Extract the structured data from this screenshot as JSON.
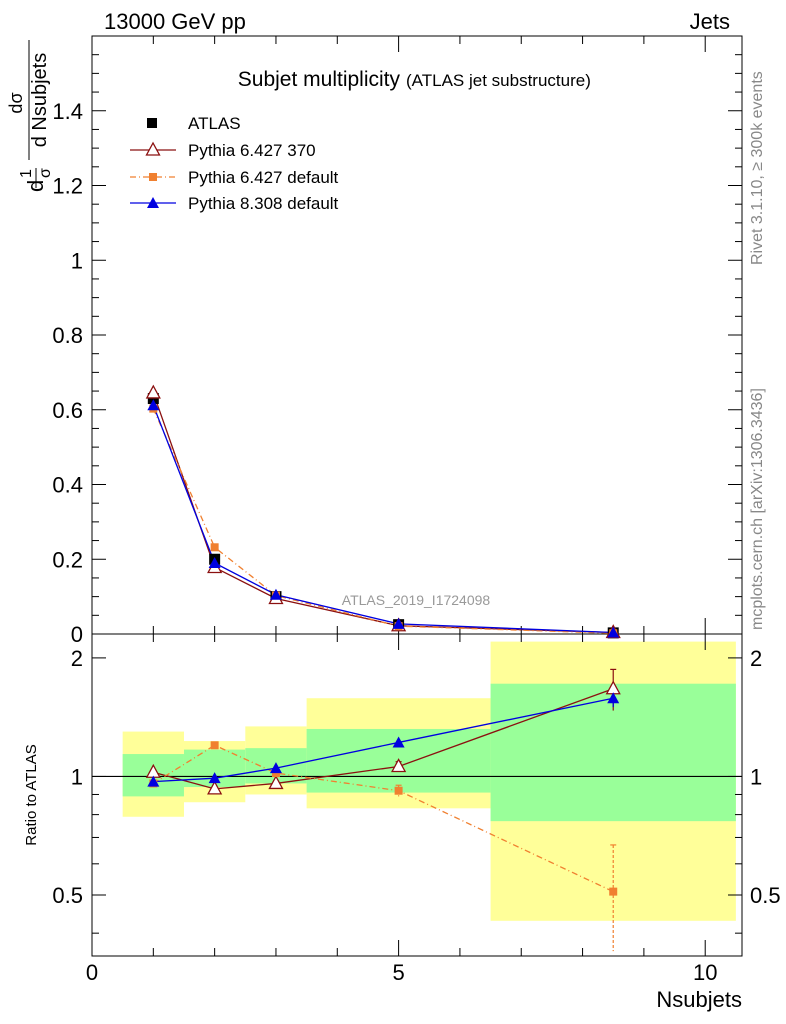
{
  "header": {
    "left": "13000 GeV pp",
    "right": "Jets"
  },
  "title": {
    "main": "Subjet multiplicity",
    "sub": "(ATLAS jet substructure)"
  },
  "watermark": "ATLAS_2019_I1724098",
  "side_labels": {
    "rivet": "Rivet 3.1.10, ≥ 300k events",
    "mcplots": "mcplots.cern.ch [arXiv:1306.3436]"
  },
  "ylabel": {
    "num": "1",
    "den": "σ",
    "dnum": "dσ",
    "dden": "d Nsubjets"
  },
  "ratio_ylabel": "Ratio to ATLAS",
  "xlabel": "Nsubjets",
  "legend": [
    "ATLAS",
    "Pythia 6.427 370",
    "Pythia 6.427 default",
    "Pythia 8.308 default"
  ],
  "colors": {
    "atlas": "#000000",
    "p370": "#8b1010",
    "pdefault": "#f08030",
    "p8": "#0000e0",
    "band_inner": "#99ff99",
    "band_outer": "#ffff99"
  },
  "chart_data": [
    {
      "type": "scatter",
      "panel": "main",
      "xlim": [
        0,
        10.6
      ],
      "ylim": [
        0,
        1.6
      ],
      "yticks": [
        0,
        0.2,
        0.4,
        0.6,
        0.8,
        1,
        1.2,
        1.4
      ],
      "ytick_labels": [
        "0",
        "0.2",
        "0.4",
        "0.6",
        "0.8",
        "1",
        "1.2",
        "1.4"
      ],
      "series": [
        {
          "name": "ATLAS",
          "x": [
            1,
            2,
            3,
            5,
            8.5
          ],
          "y": [
            0.63,
            0.2,
            0.1,
            0.025,
            0.003
          ]
        },
        {
          "name": "Pythia 6.427 370",
          "x": [
            1,
            2,
            3,
            5,
            8.5
          ],
          "y": [
            0.645,
            0.178,
            0.095,
            0.022,
            0.004
          ]
        },
        {
          "name": "Pythia 6.427 default",
          "x": [
            1,
            2,
            3,
            5,
            8.5
          ],
          "y": [
            0.603,
            0.232,
            0.103,
            0.021,
            0.002
          ]
        },
        {
          "name": "Pythia 8.308 default",
          "x": [
            1,
            2,
            3,
            5,
            8.5
          ],
          "y": [
            0.612,
            0.19,
            0.105,
            0.027,
            0.004
          ]
        }
      ]
    },
    {
      "type": "scatter",
      "panel": "ratio",
      "xlim": [
        0,
        10.6
      ],
      "ylim": [
        0.35,
        2.3
      ],
      "log_y": true,
      "xticks": [
        0,
        5,
        10
      ],
      "xtick_labels": [
        "0",
        "5",
        "10"
      ],
      "yticks": [
        0.5,
        1,
        2
      ],
      "ytick_labels": [
        "0.5",
        "1",
        "2"
      ],
      "bands": [
        {
          "x": [
            0.5,
            1.5
          ],
          "inner": [
            0.89,
            1.14
          ],
          "outer": [
            0.79,
            1.3
          ]
        },
        {
          "x": [
            1.5,
            2.5
          ],
          "inner": [
            0.94,
            1.17
          ],
          "outer": [
            0.86,
            1.23
          ]
        },
        {
          "x": [
            2.5,
            3.5
          ],
          "inner": [
            0.96,
            1.18
          ],
          "outer": [
            0.9,
            1.34
          ]
        },
        {
          "x": [
            3.5,
            6.5
          ],
          "inner": [
            0.91,
            1.32
          ],
          "outer": [
            0.83,
            1.58
          ]
        },
        {
          "x": [
            6.5,
            10.5
          ],
          "inner": [
            0.77,
            1.72
          ],
          "outer": [
            0.43,
            2.2
          ]
        }
      ],
      "series": [
        {
          "name": "Pythia 6.427 370",
          "x": [
            1,
            2,
            3,
            5,
            8.5
          ],
          "y": [
            1.025,
            0.93,
            0.96,
            1.06,
            1.67
          ],
          "err": [
            0,
            0,
            0,
            0.03,
            0.2
          ]
        },
        {
          "name": "Pythia 6.427 default",
          "x": [
            1,
            2,
            3,
            5,
            8.5
          ],
          "y": [
            0.96,
            1.2,
            1.02,
            0.92,
            0.51
          ],
          "err": [
            0,
            0,
            0,
            0.03,
            0.16
          ]
        },
        {
          "name": "Pythia 8.308 default",
          "x": [
            1,
            2,
            3,
            5,
            8.5
          ],
          "y": [
            0.97,
            0.99,
            1.05,
            1.22,
            1.58
          ],
          "err": [
            0,
            0,
            0,
            0,
            0.08
          ]
        }
      ]
    }
  ]
}
